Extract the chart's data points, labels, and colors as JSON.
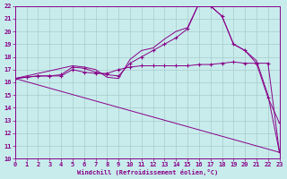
{
  "xlabel": "Windchill (Refroidissement éolien,°C)",
  "xlim": [
    0,
    23
  ],
  "ylim": [
    10,
    22
  ],
  "bg_color": "#c8ecec",
  "line_color": "#880088",
  "grid_color": "#a8cccc",
  "lines": [
    {
      "x": [
        0,
        1,
        2,
        3,
        4,
        5,
        6,
        7,
        8,
        9,
        10,
        11,
        12,
        13,
        14,
        15,
        16,
        17,
        18,
        19,
        20,
        21,
        22,
        23
      ],
      "y": [
        16.3,
        16.4,
        16.5,
        16.5,
        16.5,
        17.0,
        16.8,
        16.7,
        16.7,
        17.0,
        17.2,
        17.3,
        17.3,
        17.3,
        17.3,
        17.3,
        17.4,
        17.4,
        17.5,
        17.6,
        17.5,
        17.5,
        17.5,
        10.5
      ],
      "show_markers": true
    },
    {
      "x": [
        0,
        1,
        2,
        3,
        4,
        5,
        6,
        7,
        8,
        9,
        10,
        11,
        12,
        13,
        14,
        15,
        16,
        17,
        18,
        19,
        20,
        21,
        22,
        23
      ],
      "y": [
        16.3,
        16.4,
        16.5,
        16.5,
        16.6,
        17.2,
        17.1,
        16.8,
        16.6,
        16.5,
        17.5,
        18.0,
        18.5,
        19.0,
        19.5,
        20.2,
        22.2,
        22.0,
        21.2,
        19.0,
        18.5,
        17.5,
        14.8,
        12.8
      ],
      "show_markers": true
    },
    {
      "x": [
        0,
        5,
        6,
        7,
        8,
        9,
        10,
        11,
        12,
        13,
        14,
        15,
        16,
        17,
        18,
        19,
        20,
        21,
        22,
        23
      ],
      "y": [
        16.3,
        17.3,
        17.2,
        17.0,
        16.4,
        16.3,
        17.8,
        18.5,
        18.7,
        19.4,
        20.0,
        20.3,
        22.2,
        22.0,
        21.2,
        19.0,
        18.5,
        17.7,
        15.0,
        10.5
      ],
      "show_markers": false
    },
    {
      "x": [
        0,
        23
      ],
      "y": [
        16.3,
        10.5
      ],
      "show_markers": false
    }
  ]
}
